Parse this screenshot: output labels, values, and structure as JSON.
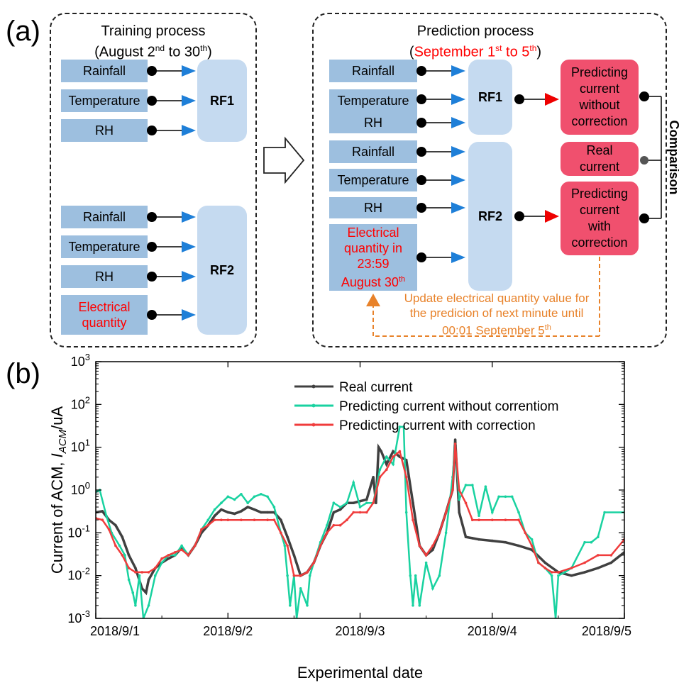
{
  "panel_a": {
    "label": "(a)",
    "training": {
      "title_line1": "Training process",
      "title_line2_prefix": "(August 2",
      "title_sup1": "nd",
      "title_mid": " to 30",
      "title_sup2": "th",
      "title_end": ")",
      "group1_inputs": [
        "Rainfall",
        "Temperature",
        "RH"
      ],
      "rf1": "RF1",
      "group2_inputs": [
        "Rainfall",
        "Temperature",
        "RH"
      ],
      "group2_extra_line1": "Electrical",
      "group2_extra_line2": "quantity",
      "rf2": "RF2"
    },
    "prediction": {
      "title_line1": "Prediction process",
      "title_open": "(",
      "title_red_prefix": "September 1",
      "title_red_sup": "st",
      "title_red_suffix": " to 5",
      "title_red_sup2": "th",
      "title_close": ")",
      "group1_inputs": [
        "Rainfall",
        "Temperature",
        "RH"
      ],
      "rf1": "RF1",
      "group2_inputs": [
        "Rainfall",
        "Temperature",
        "RH"
      ],
      "group2_extra_lines": [
        "Electrical",
        "quantity in",
        "23:59"
      ],
      "group2_extra_last": "August 30",
      "group2_extra_last_sup": "th",
      "rf2": "RF2",
      "out1_lines": [
        "Predicting",
        "current",
        "without",
        "correction"
      ],
      "real_lines": [
        "Real",
        "current"
      ],
      "out2_lines": [
        "Predicting",
        "current",
        "with",
        "correction"
      ],
      "comparison": "Comparison",
      "update_line1": "Update electrical quantity value for",
      "update_line2": "the predicion of next minute until",
      "update_line3": "00:01 September 5",
      "update_line3_sup": "th"
    }
  },
  "panel_b": {
    "label": "(b)",
    "chart_data": {
      "type": "line",
      "title": "",
      "xlabel": "Experimental date",
      "ylabel_prefix": "Current of ACM, ",
      "ylabel_var": "I",
      "ylabel_sub": "ACM",
      "ylabel_suffix": "/uA",
      "y_scale": "log",
      "ylim": [
        0.001,
        1000
      ],
      "y_ticks": [
        {
          "value": 0.001,
          "base": "10",
          "exp": "-3"
        },
        {
          "value": 0.01,
          "base": "10",
          "exp": "-2"
        },
        {
          "value": 0.1,
          "base": "10",
          "exp": "-1"
        },
        {
          "value": 1,
          "base": "10",
          "exp": "0"
        },
        {
          "value": 10,
          "base": "10",
          "exp": "1"
        },
        {
          "value": 100,
          "base": "10",
          "exp": "2"
        },
        {
          "value": 1000,
          "base": "10",
          "exp": "3"
        }
      ],
      "xlim": [
        0,
        4
      ],
      "x_ticks": [
        {
          "value": 0,
          "label": "2018/9/1"
        },
        {
          "value": 1,
          "label": "2018/9/2"
        },
        {
          "value": 2,
          "label": "2018/9/3"
        },
        {
          "value": 3,
          "label": "2018/9/4"
        },
        {
          "value": 4,
          "label": "2018/9/5"
        }
      ],
      "legend_position": "top-right",
      "series": [
        {
          "name": "Real current",
          "color": "#404040",
          "points": [
            [
              0,
              0.3
            ],
            [
              0.05,
              0.32
            ],
            [
              0.1,
              0.2
            ],
            [
              0.15,
              0.15
            ],
            [
              0.2,
              0.08
            ],
            [
              0.25,
              0.03
            ],
            [
              0.3,
              0.015
            ],
            [
              0.35,
              0.005
            ],
            [
              0.38,
              0.004
            ],
            [
              0.4,
              0.008
            ],
            [
              0.45,
              0.015
            ],
            [
              0.5,
              0.02
            ],
            [
              0.55,
              0.025
            ],
            [
              0.6,
              0.03
            ],
            [
              0.65,
              0.045
            ],
            [
              0.7,
              0.03
            ],
            [
              0.75,
              0.05
            ],
            [
              0.8,
              0.1
            ],
            [
              0.85,
              0.15
            ],
            [
              0.9,
              0.25
            ],
            [
              0.95,
              0.35
            ],
            [
              1.0,
              0.3
            ],
            [
              1.05,
              0.28
            ],
            [
              1.1,
              0.32
            ],
            [
              1.15,
              0.4
            ],
            [
              1.2,
              0.35
            ],
            [
              1.25,
              0.3
            ],
            [
              1.3,
              0.3
            ],
            [
              1.35,
              0.3
            ],
            [
              1.4,
              0.2
            ],
            [
              1.45,
              0.08
            ],
            [
              1.5,
              0.03
            ],
            [
              1.55,
              0.01
            ],
            [
              1.6,
              0.012
            ],
            [
              1.65,
              0.02
            ],
            [
              1.7,
              0.05
            ],
            [
              1.75,
              0.1
            ],
            [
              1.8,
              0.3
            ],
            [
              1.85,
              0.35
            ],
            [
              1.9,
              0.5
            ],
            [
              1.95,
              0.5
            ],
            [
              2.0,
              0.55
            ],
            [
              2.05,
              0.6
            ],
            [
              2.1,
              2.0
            ],
            [
              2.12,
              0.5
            ],
            [
              2.14,
              10
            ],
            [
              2.16,
              8
            ],
            [
              2.2,
              4
            ],
            [
              2.25,
              8
            ],
            [
              2.3,
              6
            ],
            [
              2.35,
              5
            ],
            [
              2.4,
              0.5
            ],
            [
              2.45,
              0.05
            ],
            [
              2.5,
              0.03
            ],
            [
              2.55,
              0.04
            ],
            [
              2.6,
              0.1
            ],
            [
              2.65,
              0.3
            ],
            [
              2.7,
              1.0
            ],
            [
              2.72,
              15
            ],
            [
              2.75,
              0.3
            ],
            [
              2.8,
              0.08
            ],
            [
              2.85,
              0.075
            ],
            [
              2.9,
              0.07
            ],
            [
              3.0,
              0.065
            ],
            [
              3.1,
              0.06
            ],
            [
              3.2,
              0.05
            ],
            [
              3.3,
              0.04
            ],
            [
              3.4,
              0.02
            ],
            [
              3.5,
              0.012
            ],
            [
              3.6,
              0.01
            ],
            [
              3.7,
              0.012
            ],
            [
              3.8,
              0.015
            ],
            [
              3.9,
              0.02
            ],
            [
              4.0,
              0.035
            ]
          ]
        },
        {
          "name": "Predicting current without correntiom",
          "color": "#19d2a0",
          "points": [
            [
              0,
              0.9
            ],
            [
              0.03,
              1.0
            ],
            [
              0.08,
              0.25
            ],
            [
              0.12,
              0.1
            ],
            [
              0.18,
              0.05
            ],
            [
              0.22,
              0.03
            ],
            [
              0.25,
              0.008
            ],
            [
              0.28,
              0.004
            ],
            [
              0.3,
              0.002
            ],
            [
              0.33,
              0.01
            ],
            [
              0.36,
              0.001
            ],
            [
              0.4,
              0.002
            ],
            [
              0.45,
              0.01
            ],
            [
              0.5,
              0.02
            ],
            [
              0.55,
              0.03
            ],
            [
              0.6,
              0.03
            ],
            [
              0.65,
              0.05
            ],
            [
              0.7,
              0.03
            ],
            [
              0.75,
              0.05
            ],
            [
              0.8,
              0.12
            ],
            [
              0.85,
              0.2
            ],
            [
              0.9,
              0.35
            ],
            [
              0.95,
              0.5
            ],
            [
              1.0,
              0.7
            ],
            [
              1.05,
              0.6
            ],
            [
              1.1,
              0.8
            ],
            [
              1.15,
              0.5
            ],
            [
              1.2,
              0.7
            ],
            [
              1.25,
              0.8
            ],
            [
              1.3,
              0.7
            ],
            [
              1.35,
              0.4
            ],
            [
              1.4,
              0.1
            ],
            [
              1.43,
              0.05
            ],
            [
              1.45,
              0.01
            ],
            [
              1.47,
              0.002
            ],
            [
              1.5,
              0.01
            ],
            [
              1.52,
              0.001
            ],
            [
              1.55,
              0.005
            ],
            [
              1.6,
              0.002
            ],
            [
              1.62,
              0.01
            ],
            [
              1.65,
              0.02
            ],
            [
              1.7,
              0.06
            ],
            [
              1.75,
              0.15
            ],
            [
              1.8,
              0.5
            ],
            [
              1.85,
              0.4
            ],
            [
              1.9,
              0.5
            ],
            [
              1.95,
              1.5
            ],
            [
              2.0,
              0.4
            ],
            [
              2.05,
              0.5
            ],
            [
              2.1,
              0.5
            ],
            [
              2.15,
              3
            ],
            [
              2.2,
              6
            ],
            [
              2.25,
              4
            ],
            [
              2.3,
              30
            ],
            [
              2.33,
              30
            ],
            [
              2.35,
              0.3
            ],
            [
              2.38,
              0.01
            ],
            [
              2.4,
              0.002
            ],
            [
              2.42,
              0.01
            ],
            [
              2.45,
              0.002
            ],
            [
              2.5,
              0.02
            ],
            [
              2.55,
              0.005
            ],
            [
              2.6,
              0.01
            ],
            [
              2.65,
              0.1
            ],
            [
              2.7,
              2.0
            ],
            [
              2.72,
              12
            ],
            [
              2.75,
              0.6
            ],
            [
              2.8,
              1.3
            ],
            [
              2.85,
              1.3
            ],
            [
              2.9,
              0.25
            ],
            [
              2.95,
              1.2
            ],
            [
              3.0,
              0.3
            ],
            [
              3.05,
              0.7
            ],
            [
              3.1,
              0.7
            ],
            [
              3.15,
              0.7
            ],
            [
              3.2,
              0.3
            ],
            [
              3.25,
              0.1
            ],
            [
              3.3,
              0.07
            ],
            [
              3.35,
              0.02
            ],
            [
              3.4,
              0.015
            ],
            [
              3.45,
              0.01
            ],
            [
              3.48,
              0.001
            ],
            [
              3.5,
              0.01
            ],
            [
              3.55,
              0.012
            ],
            [
              3.6,
              0.015
            ],
            [
              3.7,
              0.06
            ],
            [
              3.75,
              0.06
            ],
            [
              3.8,
              0.08
            ],
            [
              3.85,
              0.3
            ],
            [
              4.0,
              0.3
            ]
          ]
        },
        {
          "name": "Predicting current with correction",
          "color": "#f03c3c",
          "points": [
            [
              0,
              0.22
            ],
            [
              0.05,
              0.2
            ],
            [
              0.1,
              0.12
            ],
            [
              0.15,
              0.05
            ],
            [
              0.2,
              0.03
            ],
            [
              0.25,
              0.015
            ],
            [
              0.3,
              0.012
            ],
            [
              0.35,
              0.012
            ],
            [
              0.4,
              0.012
            ],
            [
              0.45,
              0.015
            ],
            [
              0.5,
              0.025
            ],
            [
              0.55,
              0.03
            ],
            [
              0.6,
              0.035
            ],
            [
              0.65,
              0.04
            ],
            [
              0.7,
              0.03
            ],
            [
              0.75,
              0.05
            ],
            [
              0.8,
              0.12
            ],
            [
              0.85,
              0.15
            ],
            [
              0.9,
              0.2
            ],
            [
              0.95,
              0.2
            ],
            [
              1.0,
              0.2
            ],
            [
              1.1,
              0.2
            ],
            [
              1.2,
              0.2
            ],
            [
              1.3,
              0.2
            ],
            [
              1.35,
              0.2
            ],
            [
              1.4,
              0.1
            ],
            [
              1.45,
              0.05
            ],
            [
              1.5,
              0.01
            ],
            [
              1.55,
              0.01
            ],
            [
              1.6,
              0.012
            ],
            [
              1.65,
              0.02
            ],
            [
              1.7,
              0.05
            ],
            [
              1.75,
              0.1
            ],
            [
              1.8,
              0.15
            ],
            [
              1.85,
              0.15
            ],
            [
              1.9,
              0.2
            ],
            [
              1.95,
              0.3
            ],
            [
              2.0,
              0.3
            ],
            [
              2.05,
              0.3
            ],
            [
              2.1,
              0.5
            ],
            [
              2.15,
              2.0
            ],
            [
              2.2,
              3.0
            ],
            [
              2.25,
              6
            ],
            [
              2.3,
              8
            ],
            [
              2.35,
              2.0
            ],
            [
              2.4,
              0.2
            ],
            [
              2.45,
              0.05
            ],
            [
              2.5,
              0.03
            ],
            [
              2.55,
              0.05
            ],
            [
              2.6,
              0.1
            ],
            [
              2.65,
              0.3
            ],
            [
              2.7,
              1.0
            ],
            [
              2.72,
              12
            ],
            [
              2.75,
              1.0
            ],
            [
              2.8,
              0.5
            ],
            [
              2.85,
              0.2
            ],
            [
              2.9,
              0.2
            ],
            [
              3.0,
              0.2
            ],
            [
              3.1,
              0.2
            ],
            [
              3.2,
              0.2
            ],
            [
              3.25,
              0.1
            ],
            [
              3.3,
              0.05
            ],
            [
              3.35,
              0.02
            ],
            [
              3.4,
              0.015
            ],
            [
              3.45,
              0.012
            ],
            [
              3.5,
              0.012
            ],
            [
              3.6,
              0.015
            ],
            [
              3.7,
              0.02
            ],
            [
              3.8,
              0.03
            ],
            [
              3.9,
              0.03
            ],
            [
              4.0,
              0.07
            ]
          ]
        }
      ]
    }
  }
}
